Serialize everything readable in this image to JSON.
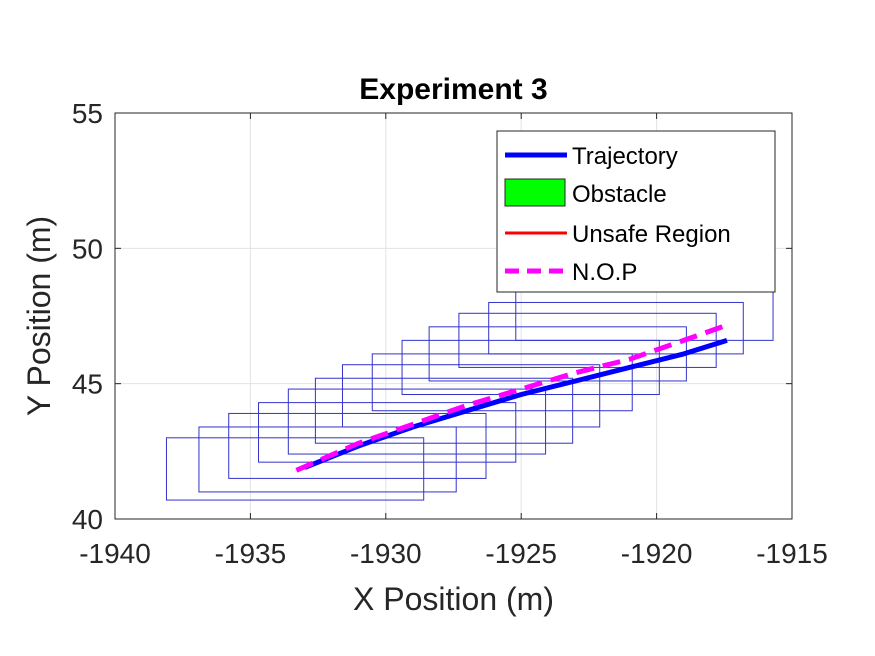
{
  "chart_data": {
    "type": "line",
    "title": "Experiment 3",
    "xlabel": "X Position (m)",
    "ylabel": "Y Position (m)",
    "xlim": [
      -1940,
      -1915
    ],
    "ylim": [
      40,
      55
    ],
    "xticks": [
      -1940,
      -1935,
      -1930,
      -1925,
      -1920,
      -1915
    ],
    "yticks": [
      40,
      45,
      50,
      55
    ],
    "grid": true,
    "legend_position": "top-right",
    "legend": [
      "Trajectory",
      "Obstacle",
      "Unsafe Region",
      "N.O.P"
    ],
    "colors": {
      "trajectory": "#0000ff",
      "obstacle": "#00ff00",
      "unsafe_region": "#ff0000",
      "nop": "#ff00ff",
      "boxes": "#3333cc",
      "grid": "#e3e3e3",
      "axes": "#262626"
    },
    "series": [
      {
        "name": "Trajectory",
        "style": "solid",
        "x": [
          -1933.0,
          -1931.0,
          -1929.0,
          -1927.0,
          -1925.0,
          -1923.0,
          -1921.0,
          -1919.0,
          -1917.4
        ],
        "y": [
          41.9,
          42.7,
          43.4,
          44.0,
          44.6,
          45.1,
          45.6,
          46.1,
          46.6
        ]
      },
      {
        "name": "N.O.P",
        "style": "dashed",
        "x": [
          -1933.3,
          -1931.0,
          -1929.0,
          -1927.0,
          -1925.0,
          -1923.0,
          -1921.0,
          -1919.0,
          -1917.3
        ],
        "y": [
          41.8,
          42.8,
          43.5,
          44.2,
          44.8,
          45.4,
          45.9,
          46.6,
          47.2
        ]
      }
    ],
    "boxes": [
      {
        "x0": -1938.1,
        "x1": -1928.6,
        "y0": 40.7,
        "y1": 43.0
      },
      {
        "x0": -1936.9,
        "x1": -1927.4,
        "y0": 41.0,
        "y1": 43.4
      },
      {
        "x0": -1935.8,
        "x1": -1926.3,
        "y0": 41.5,
        "y1": 43.9
      },
      {
        "x0": -1934.7,
        "x1": -1925.2,
        "y0": 42.1,
        "y1": 44.3
      },
      {
        "x0": -1933.6,
        "x1": -1924.1,
        "y0": 42.4,
        "y1": 44.8
      },
      {
        "x0": -1932.6,
        "x1": -1923.1,
        "y0": 42.8,
        "y1": 45.2
      },
      {
        "x0": -1931.6,
        "x1": -1922.1,
        "y0": 43.4,
        "y1": 45.7
      },
      {
        "x0": -1930.5,
        "x1": -1920.9,
        "y0": 44.0,
        "y1": 46.1
      },
      {
        "x0": -1929.4,
        "x1": -1919.9,
        "y0": 44.6,
        "y1": 46.6
      },
      {
        "x0": -1928.4,
        "x1": -1918.9,
        "y0": 45.1,
        "y1": 47.1
      },
      {
        "x0": -1927.3,
        "x1": -1917.8,
        "y0": 45.6,
        "y1": 47.6
      },
      {
        "x0": -1926.2,
        "x1": -1916.8,
        "y0": 46.1,
        "y1": 48.0
      },
      {
        "x0": -1925.2,
        "x1": -1915.7,
        "y0": 46.6,
        "y1": 48.5
      }
    ]
  }
}
